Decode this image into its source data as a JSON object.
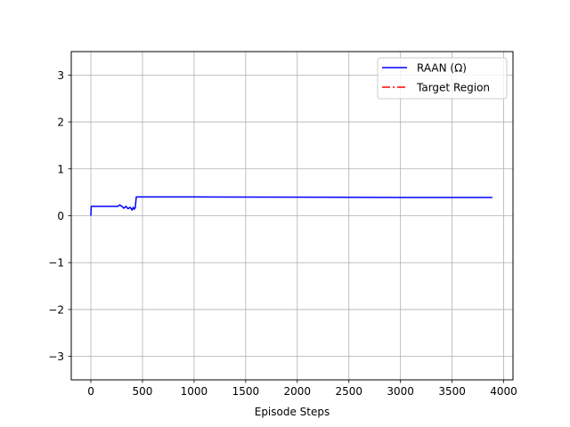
{
  "chart_data": {
    "type": "line",
    "title": "",
    "xlabel": "Episode Steps",
    "ylabel": "",
    "xlim": [
      -190,
      4090
    ],
    "ylim": [
      -3.5,
      3.5
    ],
    "xticks": [
      0,
      500,
      1000,
      1500,
      2000,
      2500,
      3000,
      3500,
      4000
    ],
    "xtick_labels": [
      "0",
      "500",
      "1000",
      "1500",
      "2000",
      "2500",
      "3000",
      "3500",
      "4000"
    ],
    "yticks": [
      -3,
      -2,
      -1,
      0,
      1,
      2,
      3
    ],
    "ytick_labels": [
      "−3",
      "−2",
      "−1",
      "0",
      "1",
      "2",
      "3"
    ],
    "grid": true,
    "legend_position": "upper right",
    "series": [
      {
        "name": "RAAN (Ω)",
        "color": "#0000ff",
        "style": "solid",
        "x": [
          0,
          3,
          5,
          100,
          200,
          260,
          280,
          300,
          320,
          340,
          360,
          380,
          400,
          410,
          420,
          430,
          440,
          450,
          455,
          1000,
          2000,
          3000,
          3890
        ],
        "y": [
          0.0,
          0.19,
          0.2,
          0.2,
          0.2,
          0.2,
          0.23,
          0.2,
          0.16,
          0.2,
          0.15,
          0.18,
          0.12,
          0.18,
          0.14,
          0.17,
          0.4,
          0.4,
          0.4,
          0.4,
          0.395,
          0.39,
          0.39
        ]
      },
      {
        "name": "Target Region",
        "color": "#ff0000",
        "style": "dashdot",
        "x": [],
        "y": []
      }
    ]
  }
}
